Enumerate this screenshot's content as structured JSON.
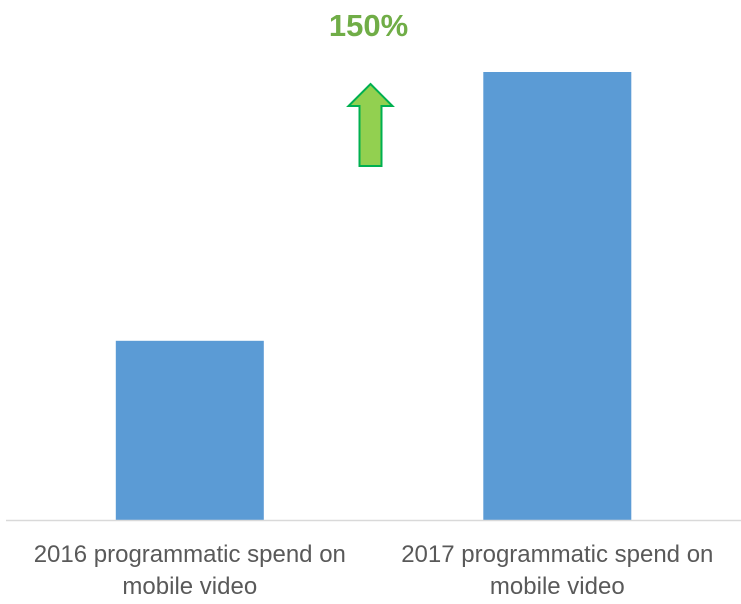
{
  "chart_data": {
    "type": "bar",
    "categories": [
      "2016 programmatic spend on mobile video",
      "2017 programmatic spend on mobile video"
    ],
    "category_lines": [
      [
        "2016 programmatic spend on",
        "mobile video"
      ],
      [
        "2017 programmatic spend on",
        "mobile video"
      ]
    ],
    "values": [
      1.0,
      2.5
    ],
    "ylim": [
      0,
      2.5
    ],
    "title": "",
    "xlabel": "",
    "ylabel": "",
    "grid": false,
    "legend": "none",
    "annotation": {
      "text": "150%",
      "arrow": "up"
    },
    "colors": {
      "bar": "#5b9bd5",
      "axis": "#d9d9d9",
      "label_text": "#595959",
      "annotation_text": "#70ad47",
      "arrow_fill": "#92d050",
      "arrow_stroke": "#00b050"
    }
  }
}
